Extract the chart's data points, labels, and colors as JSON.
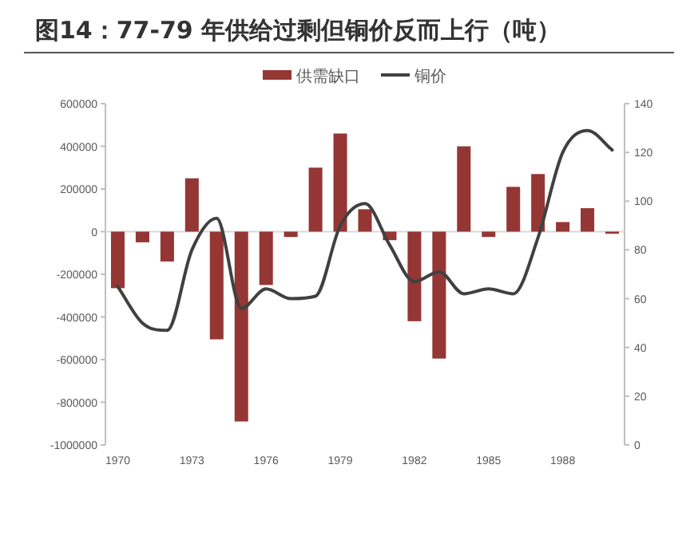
{
  "chart_data": {
    "type": "bar",
    "title": "图14：77-79 年供给过剩但铜价反而上行（吨）",
    "categories": [
      "1970",
      null,
      null,
      "1973",
      null,
      null,
      "1976",
      null,
      null,
      "1979",
      null,
      null,
      "1982",
      null,
      null,
      "1985",
      null,
      null,
      "1988",
      null,
      null
    ],
    "series": [
      {
        "name": "供需缺口",
        "color": "#943634",
        "values": [
          -265000,
          -50000,
          -140000,
          250000,
          -505000,
          -890000,
          -250000,
          -25000,
          300000,
          460000,
          105000,
          -40000,
          -420000,
          -595000,
          400000,
          -25000,
          210000,
          270000,
          45000,
          110000,
          -10000
        ]
      },
      {
        "name": "铜价",
        "type": "line",
        "axis": "y2",
        "color": "#404040",
        "values": [
          65,
          50,
          47,
          80,
          93,
          56,
          64,
          60,
          61,
          90,
          99,
          82,
          67,
          71,
          62,
          64,
          62,
          85,
          120,
          129,
          121
        ]
      }
    ],
    "ylim": [
      -1000000,
      600000
    ],
    "yticks": [
      -1000000,
      -800000,
      -600000,
      -400000,
      -200000,
      0,
      200000,
      400000,
      600000
    ],
    "y2lim": [
      0,
      140
    ],
    "y2ticks": [
      0,
      20,
      40,
      60,
      80,
      100,
      120,
      140
    ],
    "legend": "top"
  }
}
